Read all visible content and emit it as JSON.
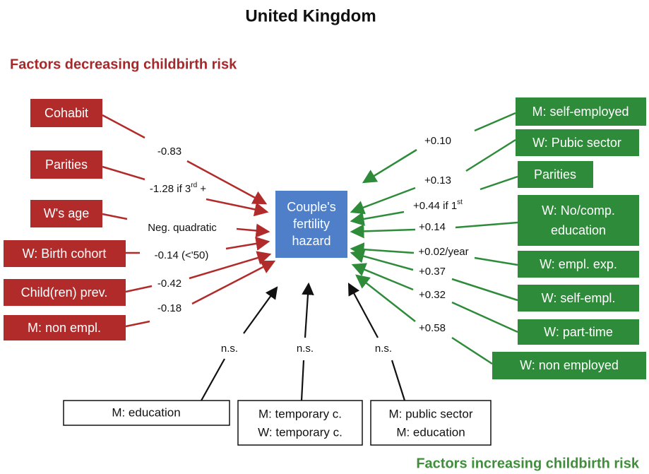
{
  "title": "United Kingdom",
  "decreasing_heading": "Factors decreasing childbirth risk",
  "increasing_heading": "Factors increasing childbirth risk",
  "center": [
    "Couple's",
    "fertility",
    "hazard"
  ],
  "decreasing": [
    {
      "factor": "Cohabit",
      "effect": "-0.83"
    },
    {
      "factor": "Parities",
      "effect": {
        "text": "-1.28 if 3",
        "sup": "rd",
        "after": " +"
      }
    },
    {
      "factor": "W's age",
      "effect": "Neg. quadratic"
    },
    {
      "factor": "W: Birth cohort",
      "effect": "-0.14 (<'50)"
    },
    {
      "factor": "Child(ren) prev.",
      "effect": "-0.42"
    },
    {
      "factor": "M: non empl.",
      "effect": "-0.18"
    }
  ],
  "increasing": [
    {
      "factor": [
        "M: self-employed"
      ],
      "effect": "+0.10"
    },
    {
      "factor": [
        "W: Pubic sector"
      ],
      "effect": "+0.13"
    },
    {
      "factor": [
        "Parities"
      ],
      "effect": {
        "text": "+0.44 if 1",
        "sup": "st"
      }
    },
    {
      "factor": [
        "W: No/comp.",
        "education"
      ],
      "effect": "+0.14"
    },
    {
      "factor": [
        "W: empl. exp."
      ],
      "effect": "+0.02/year"
    },
    {
      "factor": [
        "W: self-empl."
      ],
      "effect": "+0.37"
    },
    {
      "factor": [
        "W: part-time"
      ],
      "effect": "+0.32"
    },
    {
      "factor": [
        "W: non employed"
      ],
      "effect": "+0.58"
    }
  ],
  "not_significant": [
    {
      "factor": [
        "M: education"
      ],
      "effect": "n.s."
    },
    {
      "factor": [
        "M: temporary c.",
        "W: temporary c."
      ],
      "effect": "n.s."
    },
    {
      "factor": [
        "M: public sector",
        "M: education"
      ],
      "effect": "n.s."
    }
  ]
}
